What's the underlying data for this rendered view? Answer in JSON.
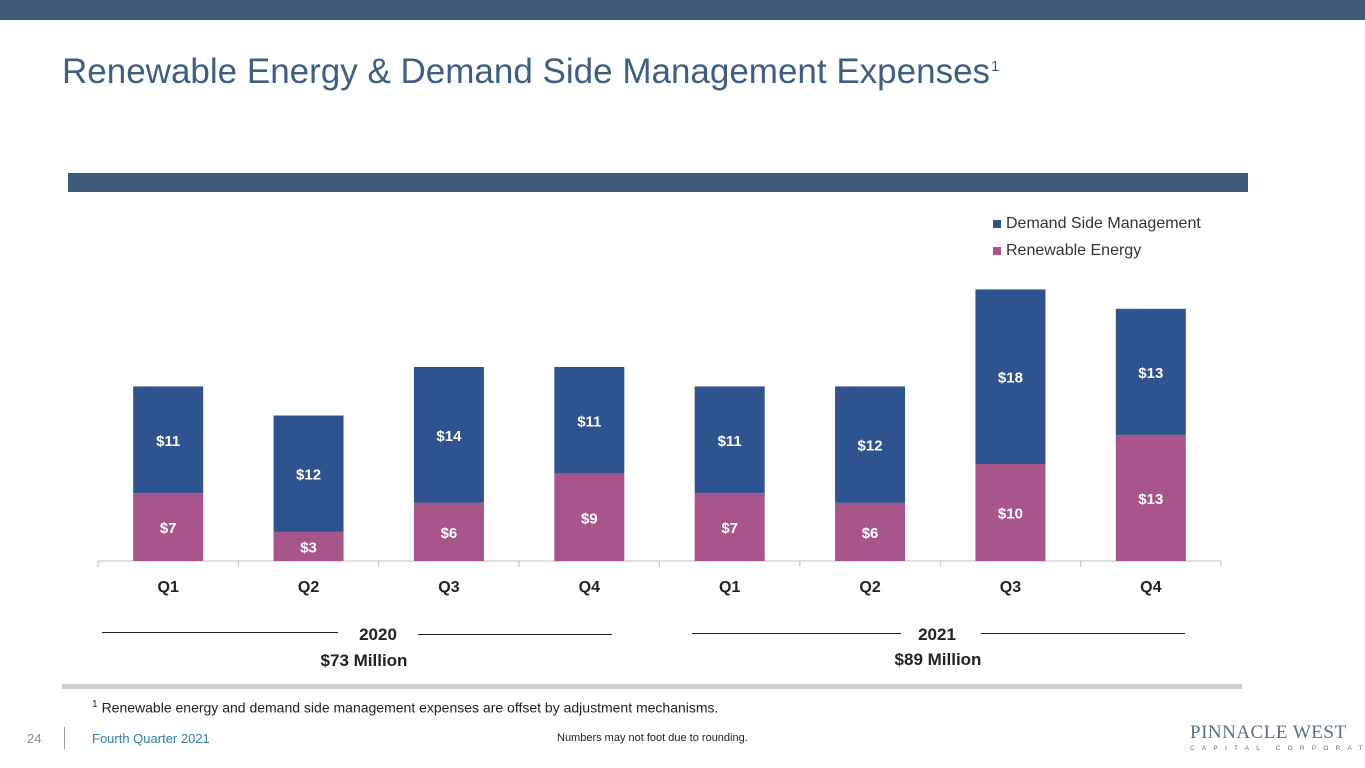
{
  "title": "Renewable Energy & Demand Side Management Expenses",
  "title_footnote_marker": "1",
  "legend": {
    "items": [
      {
        "label": "Demand Side Management",
        "color": "#2e538f"
      },
      {
        "label": "Renewable Energy",
        "color": "#a8558c"
      }
    ]
  },
  "chart_data": {
    "type": "bar",
    "stacked": true,
    "categories": [
      "Q1",
      "Q2",
      "Q3",
      "Q4",
      "Q1",
      "Q2",
      "Q3",
      "Q4"
    ],
    "series": [
      {
        "name": "Renewable Energy",
        "values": [
          7,
          3,
          6,
          9,
          7,
          6,
          10,
          13
        ],
        "labels": [
          "$7",
          "$3",
          "$6",
          "$9",
          "$7",
          "$6",
          "$10",
          "$13"
        ],
        "color": "#a8558c"
      },
      {
        "name": "Demand Side Management",
        "values": [
          11,
          12,
          14,
          11,
          11,
          12,
          18,
          13
        ],
        "labels": [
          "$11",
          "$12",
          "$14",
          "$11",
          "$11",
          "$12",
          "$18",
          "$13"
        ],
        "color": "#2e538f"
      }
    ],
    "ylim": [
      0,
      30
    ],
    "legend_position": "top-right",
    "grid": false
  },
  "groups": [
    {
      "year": "2020",
      "total": "$73 Million"
    },
    {
      "year": "2021",
      "total": "$89 Million"
    }
  ],
  "footnote": {
    "marker": "1",
    "text": "Renewable energy and demand side management expenses are offset by adjustment mechanisms."
  },
  "footer": {
    "page_number": "24",
    "label": "Fourth Quarter 2021",
    "rounding_note": "Numbers may not foot due to rounding.",
    "logo_main": "PINNACLE WEST",
    "logo_sub": "CAPITAL CORPORATION"
  }
}
